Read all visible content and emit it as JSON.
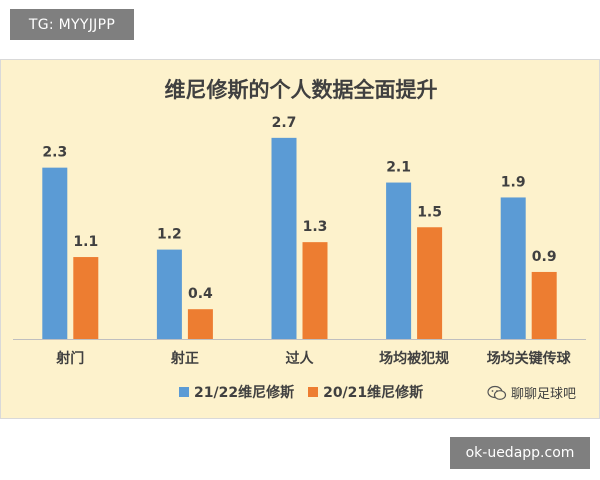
{
  "top_tag": "TG: MYYJJPP",
  "bottom_tag": "ok-uedapp.com",
  "watermark": "聊聊足球吧",
  "colors": {
    "series1": "#5b9bd5",
    "series2": "#ed7d31",
    "background": "#fdf2cc"
  },
  "chart_data": {
    "type": "bar",
    "title": "维尼修斯的个人数据全面提升",
    "categories": [
      "射门",
      "射正",
      "过人",
      "场均被犯规",
      "场均关键传球"
    ],
    "series": [
      {
        "name": "21/22维尼修斯",
        "values": [
          2.3,
          1.2,
          2.7,
          2.1,
          1.9
        ]
      },
      {
        "name": "20/21维尼修斯",
        "values": [
          1.1,
          0.4,
          1.3,
          1.5,
          0.9
        ]
      }
    ],
    "xlabel": "",
    "ylabel": "",
    "ylim": [
      0,
      3
    ],
    "grid": false,
    "legend_position": "bottom"
  }
}
